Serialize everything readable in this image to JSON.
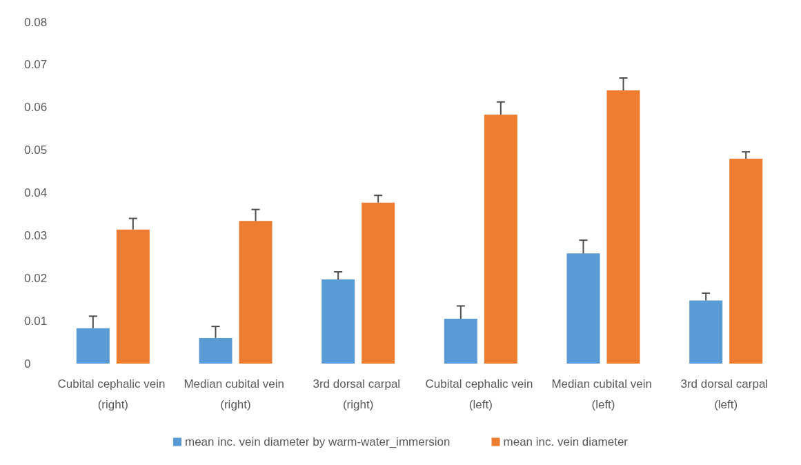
{
  "chart_data": {
    "type": "bar",
    "categories": [
      "Cubital cephalic vein (right)",
      "Median cubital vein (right)",
      "3rd dorsal carpal (right)",
      "Cubital cephalic vein (left)",
      "Median cubital vein (left)",
      "3rd dorsal carpal (left)"
    ],
    "series": [
      {
        "name": "mean inc. vein diameter by warm-water_immersion",
        "color": "#5b9bd5",
        "values": [
          0.0083,
          0.006,
          0.0197,
          0.0105,
          0.0258,
          0.0148
        ],
        "errors": [
          [
            0.0083,
            0.0111
          ],
          [
            0.006,
            0.0087
          ],
          [
            0.0197,
            0.0215
          ],
          [
            0.0105,
            0.0135
          ],
          [
            0.0258,
            0.0289
          ],
          [
            0.0148,
            0.0165
          ]
        ]
      },
      {
        "name": "mean inc. vein diameter",
        "color": "#ed7d31",
        "values": [
          0.0314,
          0.0334,
          0.0377,
          0.0583,
          0.064,
          0.048
        ],
        "errors": [
          [
            0.0314,
            0.034
          ],
          [
            0.0334,
            0.0361
          ],
          [
            0.0377,
            0.0394
          ],
          [
            0.0583,
            0.0613
          ],
          [
            0.064,
            0.0669
          ],
          [
            0.048,
            0.0496
          ]
        ]
      }
    ],
    "ylim": [
      0,
      0.08
    ],
    "yticks": [
      0,
      0.01,
      0.02,
      0.03,
      0.04,
      0.05,
      0.06,
      0.07,
      0.08
    ],
    "grid": false,
    "legend": "bottom"
  }
}
